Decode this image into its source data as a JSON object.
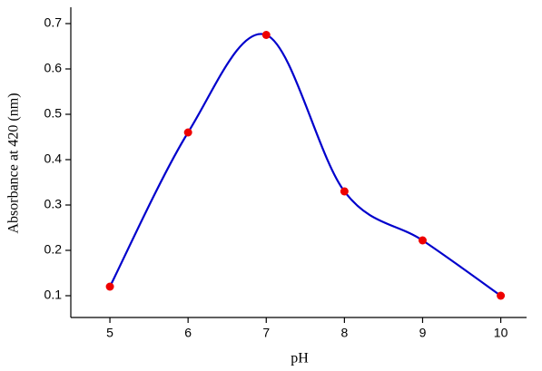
{
  "chart_data": {
    "type": "line",
    "x_label": "pH",
    "y_label": "Absorbance at 420 (nm)",
    "x": [
      5,
      6,
      7,
      8,
      9,
      10
    ],
    "series": [
      {
        "color": "#0000cc",
        "marker_color": "#ee0000",
        "values": [
          0.12,
          0.46,
          0.675,
          0.33,
          0.222,
          0.1
        ]
      }
    ],
    "smooth": true,
    "xlim": [
      4.5,
      10.33
    ],
    "xticks": [
      5,
      6,
      7,
      8,
      9,
      10
    ],
    "ylim": [
      0.052,
      0.736
    ],
    "yticks": [
      0.1,
      0.2,
      0.3,
      0.4,
      0.5,
      0.6,
      0.7
    ],
    "grid": false
  }
}
